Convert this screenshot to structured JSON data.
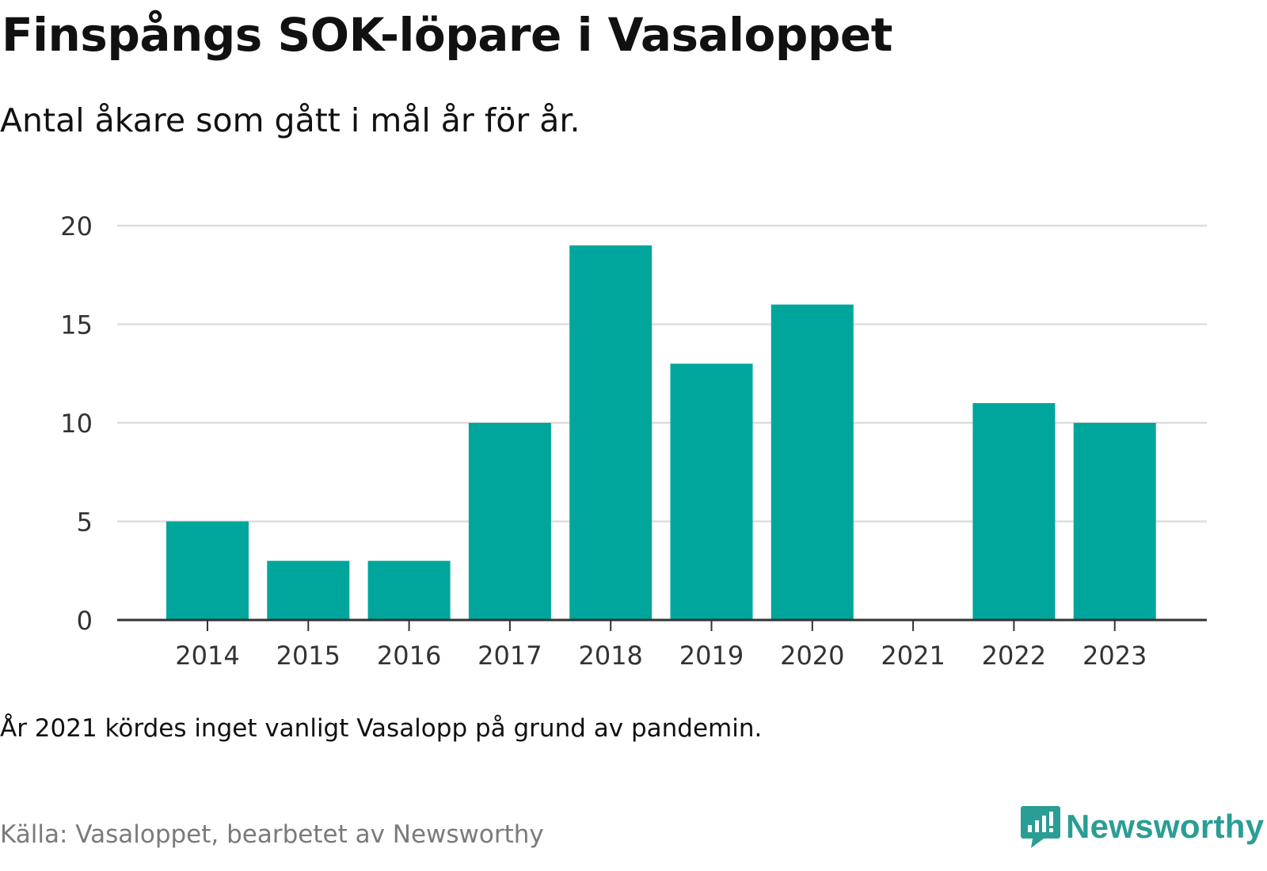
{
  "header": {
    "title": "Finspångs SOK-löpare i Vasaloppet",
    "subtitle": "Antal åkare som gått i mål år för år."
  },
  "footer": {
    "note": "År 2021 kördes inget vanligt Vasalopp på grund av pandemin.",
    "source": "Källa: Vasaloppet, bearbetet av Newsworthy",
    "brand": "Newsworthy",
    "brand_icon": "newsworthy-logo-icon"
  },
  "colors": {
    "bar": "#00a69b",
    "grid": "#dddddd",
    "axis": "#333333",
    "brand": "#2a9d94"
  },
  "chart_data": {
    "type": "bar",
    "title": "Finspångs SOK-löpare i Vasaloppet",
    "subtitle": "Antal åkare som gått i mål år för år.",
    "categories": [
      "2014",
      "2015",
      "2016",
      "2017",
      "2018",
      "2019",
      "2020",
      "2021",
      "2022",
      "2023"
    ],
    "values": [
      5,
      3,
      3,
      10,
      19,
      13,
      16,
      0,
      11,
      10
    ],
    "yticks": [
      0,
      5,
      10,
      15,
      20
    ],
    "ylim": [
      0,
      20
    ],
    "xlabel": "",
    "ylabel": "",
    "grid": true,
    "legend": "none"
  }
}
